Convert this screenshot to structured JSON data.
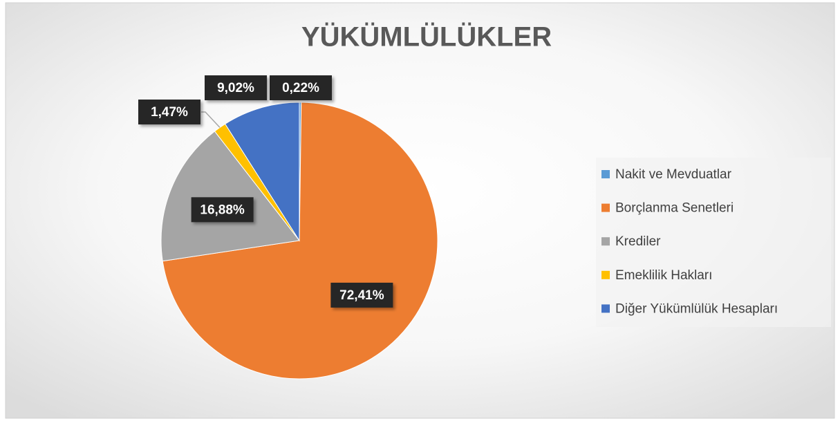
{
  "chart_data": {
    "type": "pie",
    "title": "YÜKÜMLÜLÜKLER",
    "categories": [
      "Nakit ve Mevduatlar",
      "Borçlanma Senetleri",
      "Krediler",
      "Emeklilik Hakları",
      "Diğer Yükümlülük Hesapları"
    ],
    "values": [
      0.22,
      72.41,
      16.88,
      1.47,
      9.02
    ],
    "value_labels": [
      "0,22%",
      "72,41%",
      "16,88%",
      "1,47%",
      "9,02%"
    ],
    "colors": [
      "#5b9bd5",
      "#ed7d31",
      "#a5a5a5",
      "#ffc000",
      "#4472c4"
    ],
    "legend": "right"
  }
}
